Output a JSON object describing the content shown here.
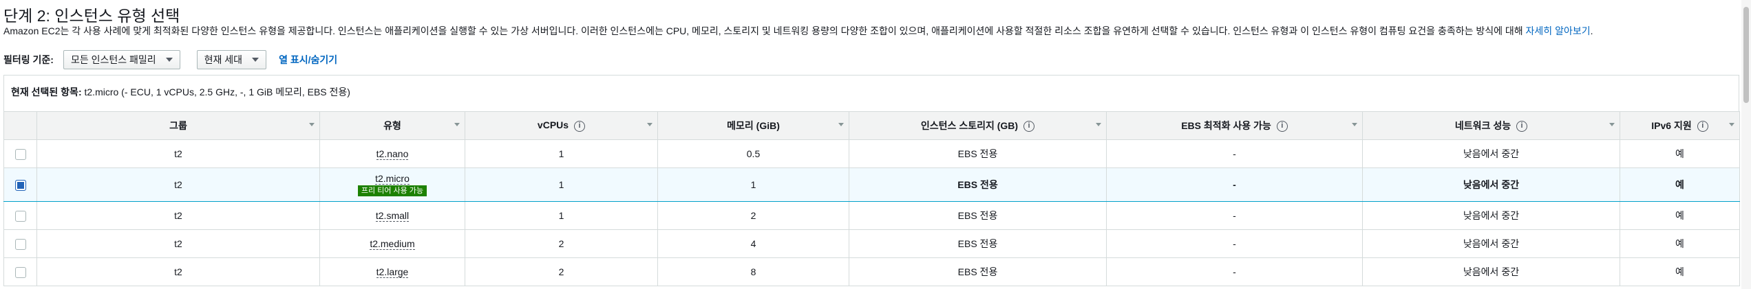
{
  "page": {
    "title": "단계 2: 인스턴스 유형 선택",
    "description": "Amazon EC2는 각 사용 사례에 맞게 최적화된 다양한 인스턴스 유형을 제공합니다. 인스턴스는 애플리케이션을 실행할 수 있는 가상 서버입니다. 이러한 인스턴스에는 CPU, 메모리, 스토리지 및 네트워킹 용량의 다양한 조합이 있으며, 애플리케이션에 사용할 적절한 리소스 조합을 유연하게 선택할 수 있습니다. 인스턴스 유형과 이 인스턴스 유형이 컴퓨팅 요건을 충족하는 방식에 대해 ",
    "learn_more": "자세히 알아보기",
    "learn_more_suffix": "."
  },
  "filter": {
    "label": "필터링 기준:",
    "family_value": "모든 인스턴스 패밀리",
    "generation_value": "현재 세대",
    "columns_link": "열 표시/숨기기"
  },
  "selected": {
    "label": "현재 선택된 항목:",
    "value": "t2.micro (- ECU, 1 vCPUs, 2.5 GHz, -, 1 GiB 메모리, EBS 전용)"
  },
  "table": {
    "headers": {
      "group": "그룹",
      "type": "유형",
      "vcpus": "vCPUs",
      "memory": "메모리 (GiB)",
      "storage": "인스턴스 스토리지 (GB)",
      "ebs": "EBS 최적화 사용 가능",
      "network": "네트워크 성능",
      "ipv6": "IPv6 지원"
    },
    "free_tier_badge": "프리 티어 사용 가능",
    "rows": [
      {
        "group": "t2",
        "type": "t2.nano",
        "vcpus": "1",
        "memory": "0.5",
        "storage": "EBS 전용",
        "ebs": "-",
        "network": "낮음에서 중간",
        "ipv6": "예",
        "selected": false
      },
      {
        "group": "t2",
        "type": "t2.micro",
        "vcpus": "1",
        "memory": "1",
        "storage": "EBS 전용",
        "ebs": "-",
        "network": "낮음에서 중간",
        "ipv6": "예",
        "selected": true
      },
      {
        "group": "t2",
        "type": "t2.small",
        "vcpus": "1",
        "memory": "2",
        "storage": "EBS 전용",
        "ebs": "-",
        "network": "낮음에서 중간",
        "ipv6": "예",
        "selected": false
      },
      {
        "group": "t2",
        "type": "t2.medium",
        "vcpus": "2",
        "memory": "4",
        "storage": "EBS 전용",
        "ebs": "-",
        "network": "낮음에서 중간",
        "ipv6": "예",
        "selected": false
      },
      {
        "group": "t2",
        "type": "t2.large",
        "vcpus": "2",
        "memory": "8",
        "storage": "EBS 전용",
        "ebs": "-",
        "network": "낮음에서 중간",
        "ipv6": "예",
        "selected": false
      }
    ]
  },
  "colors": {
    "link": "#0066c0",
    "free_tier_badge": "#1d8102",
    "selected_row_bg": "#f1faff",
    "checkbox_checked": "#2163b8"
  }
}
